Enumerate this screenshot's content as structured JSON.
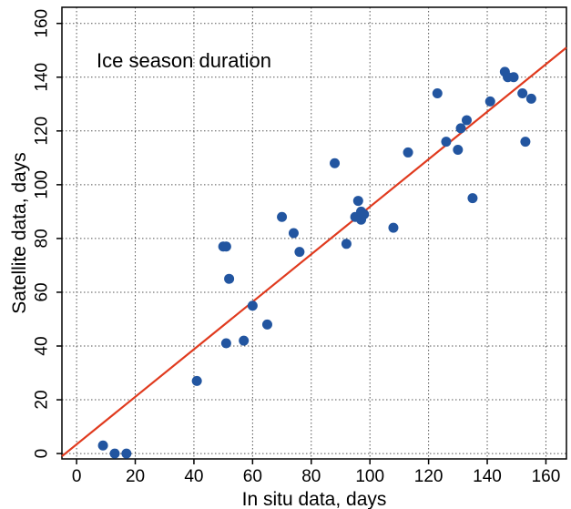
{
  "chart_data": {
    "type": "scatter",
    "annotation": "Ice season duration",
    "xlabel": "In situ data, days",
    "ylabel": "Satellite data, days",
    "xlim": [
      -5,
      167
    ],
    "ylim": [
      -2,
      166
    ],
    "xticks": [
      0,
      20,
      40,
      60,
      80,
      100,
      120,
      140,
      160
    ],
    "yticks": [
      0,
      20,
      40,
      60,
      80,
      100,
      120,
      140,
      160
    ],
    "grid": true,
    "marker_color": "#2255a0",
    "fit_line_color": "#e03a1e",
    "fit_line": {
      "x": [
        -5,
        167
      ],
      "y": [
        -1,
        151
      ]
    },
    "points": [
      {
        "x": 9,
        "y": 3
      },
      {
        "x": 13,
        "y": 0
      },
      {
        "x": 17,
        "y": 0
      },
      {
        "x": 41,
        "y": 27
      },
      {
        "x": 50,
        "y": 77
      },
      {
        "x": 51,
        "y": 77
      },
      {
        "x": 51,
        "y": 41
      },
      {
        "x": 52,
        "y": 65
      },
      {
        "x": 57,
        "y": 42
      },
      {
        "x": 60,
        "y": 55
      },
      {
        "x": 65,
        "y": 48
      },
      {
        "x": 70,
        "y": 88
      },
      {
        "x": 74,
        "y": 82
      },
      {
        "x": 76,
        "y": 75
      },
      {
        "x": 88,
        "y": 108
      },
      {
        "x": 92,
        "y": 78
      },
      {
        "x": 95,
        "y": 88
      },
      {
        "x": 96,
        "y": 94
      },
      {
        "x": 97,
        "y": 87
      },
      {
        "x": 97,
        "y": 90
      },
      {
        "x": 98,
        "y": 89
      },
      {
        "x": 108,
        "y": 84
      },
      {
        "x": 113,
        "y": 112
      },
      {
        "x": 123,
        "y": 134
      },
      {
        "x": 126,
        "y": 116
      },
      {
        "x": 130,
        "y": 113
      },
      {
        "x": 131,
        "y": 121
      },
      {
        "x": 133,
        "y": 124
      },
      {
        "x": 135,
        "y": 95
      },
      {
        "x": 141,
        "y": 131
      },
      {
        "x": 146,
        "y": 142
      },
      {
        "x": 147,
        "y": 140
      },
      {
        "x": 149,
        "y": 140
      },
      {
        "x": 152,
        "y": 134
      },
      {
        "x": 153,
        "y": 116
      },
      {
        "x": 155,
        "y": 132
      }
    ]
  }
}
